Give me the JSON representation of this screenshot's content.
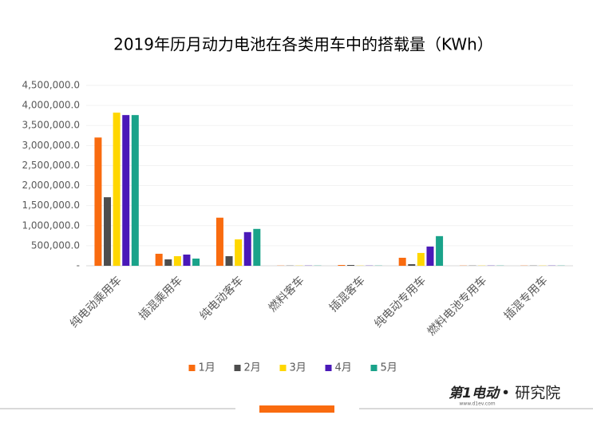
{
  "chart_data": {
    "type": "bar",
    "title": "2019年历月动力电池在各类用车中的搭载量（KWh）",
    "categories": [
      "纯电动乘用车",
      "插混乘用车",
      "纯电动客车",
      "燃料客车",
      "插混客车",
      "纯电动专用车",
      "燃料电池专用车",
      "插混专用车"
    ],
    "series": [
      {
        "name": "1月",
        "color": "#f96b0f",
        "values": [
          3200000,
          300000,
          1200000,
          5000,
          20000,
          200000,
          5000,
          5000
        ]
      },
      {
        "name": "2月",
        "color": "#4d4d4d",
        "values": [
          1710000,
          160000,
          240000,
          5000,
          20000,
          40000,
          5000,
          5000
        ]
      },
      {
        "name": "3月",
        "color": "#ffd700",
        "values": [
          3820000,
          240000,
          660000,
          5000,
          5000,
          320000,
          5000,
          5000
        ]
      },
      {
        "name": "4月",
        "color": "#4a19b8",
        "values": [
          3760000,
          280000,
          840000,
          5000,
          5000,
          480000,
          5000,
          5000
        ]
      },
      {
        "name": "5月",
        "color": "#1aa38a",
        "values": [
          3760000,
          180000,
          920000,
          5000,
          5000,
          740000,
          5000,
          5000
        ]
      }
    ],
    "ylim": [
      0,
      4500000
    ],
    "yticks": [
      {
        "value": 0,
        "label": "-"
      },
      {
        "value": 500000,
        "label": "500,000.0"
      },
      {
        "value": 1000000,
        "label": "1,000,000.0"
      },
      {
        "value": 1500000,
        "label": "1,500,000.0"
      },
      {
        "value": 2000000,
        "label": "2,000,000.0"
      },
      {
        "value": 2500000,
        "label": "2,500,000.0"
      },
      {
        "value": 3000000,
        "label": "3,000,000.0"
      },
      {
        "value": 3500000,
        "label": "3,500,000.0"
      },
      {
        "value": 4000000,
        "label": "4,000,000.0"
      },
      {
        "value": 4500000,
        "label": "4,500,000.0"
      }
    ],
    "grid": true,
    "legend": "bottom"
  },
  "footer": {
    "brand": "第1电动",
    "site": "www.d1ev.com",
    "org": "• 研究院"
  }
}
